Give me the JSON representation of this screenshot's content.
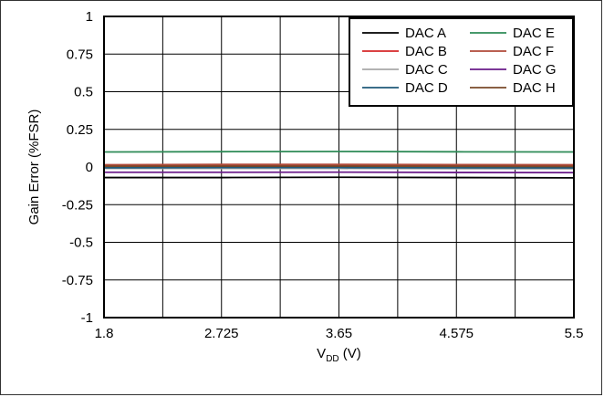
{
  "chart_data": {
    "type": "line",
    "xlabel_main": "V",
    "xlabel_sub": "DD",
    "xlabel_unit": " (V)",
    "ylabel": "Gain Error (%FSR)",
    "xlim": [
      1.8,
      5.5
    ],
    "ylim": [
      -1,
      1
    ],
    "x_ticks": [
      "1.8",
      "2.725",
      "3.65",
      "4.575",
      "5.5"
    ],
    "y_ticks": [
      "1",
      "0.75",
      "0.5",
      "0.25",
      "0",
      "-0.25",
      "-0.5",
      "-0.75",
      "-1"
    ],
    "grid": true,
    "legend_position": "top-right",
    "x": [
      1.8,
      2.725,
      3.65,
      4.575,
      5.5
    ],
    "series": [
      {
        "name": "DAC A",
        "color": "#000000",
        "values": [
          -0.07,
          -0.07,
          -0.068,
          -0.07,
          -0.072
        ]
      },
      {
        "name": "DAC B",
        "color": "#d62728",
        "values": [
          0.01,
          0.012,
          0.012,
          0.011,
          0.01
        ]
      },
      {
        "name": "DAC C",
        "color": "#a8a8a8",
        "values": [
          -0.01,
          -0.01,
          -0.01,
          -0.011,
          -0.012
        ]
      },
      {
        "name": "DAC D",
        "color": "#1f5a7a",
        "values": [
          -0.005,
          -0.004,
          -0.004,
          -0.005,
          -0.006
        ]
      },
      {
        "name": "DAC E",
        "color": "#2e8b57",
        "values": [
          0.1,
          0.102,
          0.103,
          0.101,
          0.1
        ]
      },
      {
        "name": "DAC F",
        "color": "#b04a3a",
        "values": [
          0.015,
          0.017,
          0.017,
          0.016,
          0.015
        ]
      },
      {
        "name": "DAC G",
        "color": "#6a1b8a",
        "values": [
          -0.035,
          -0.035,
          -0.034,
          -0.036,
          -0.037
        ]
      },
      {
        "name": "DAC H",
        "color": "#7a4a2a",
        "values": [
          0.005,
          0.006,
          0.006,
          0.005,
          0.004
        ]
      }
    ]
  }
}
